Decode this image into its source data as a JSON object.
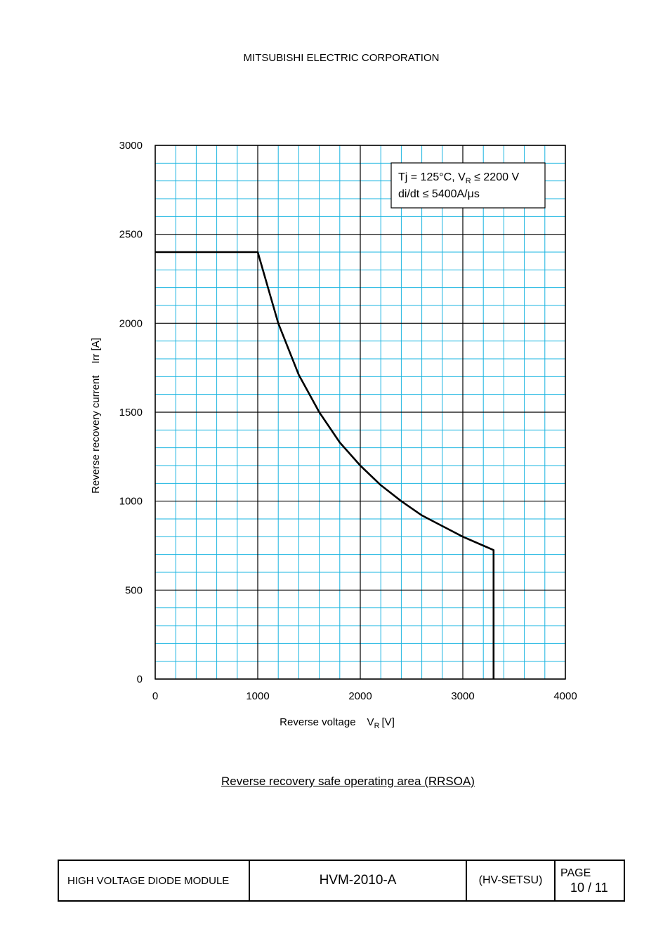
{
  "header": {
    "company": "MITSUBISHI ELECTRIC CORPORATION"
  },
  "chart_data": {
    "type": "line",
    "xlabel": "Reverse voltage",
    "xlabel_symbol": "V",
    "xlabel_subscript": "R",
    "xlabel_unit": "[V]",
    "ylabel": "Reverse recovery current    Irr [A]",
    "xlim": [
      0,
      4000
    ],
    "ylim": [
      0,
      3000
    ],
    "x_ticks": [
      0,
      1000,
      2000,
      3000,
      4000
    ],
    "y_ticks": [
      0,
      500,
      1000,
      1500,
      2000,
      2500,
      3000
    ],
    "x_tick_labels": [
      "0",
      "1000",
      "2000",
      "3000",
      "4000"
    ],
    "y_tick_labels": [
      "0",
      "500",
      "1000",
      "1500",
      "2000",
      "2500",
      "3000"
    ],
    "minor_x_step": 200,
    "minor_y_step": 100,
    "grid": true,
    "grid_minor_color": "#19b4e0",
    "grid_major_color": "#000000",
    "legend_position": "top-right",
    "annotation": {
      "line1_prefix": "Tj = 125°C, V",
      "line1_subscript": "R",
      "line1_suffix": " ≤ 2200 V",
      "line2": "di/dt ≤ 5400A/μs"
    },
    "series": [
      {
        "x": [
          0,
          1000,
          1100,
          1200,
          1400,
          1600,
          1800,
          2000,
          2200,
          2400,
          2600,
          2800,
          3000,
          3200,
          3300,
          3300
        ],
        "y": [
          2400,
          2400,
          2200,
          2000,
          1710,
          1500,
          1330,
          1200,
          1090,
          1000,
          920,
          860,
          800,
          750,
          725,
          0
        ],
        "color": "#000000"
      }
    ]
  },
  "caption": "Reverse recovery safe operating area (RRSOA)",
  "footer": {
    "product": "HIGH VOLTAGE DIODE MODULE",
    "model": "HVM-2010-A",
    "code": "(HV-SETSU)",
    "page_label": "PAGE",
    "page_number": "10 / 11"
  }
}
